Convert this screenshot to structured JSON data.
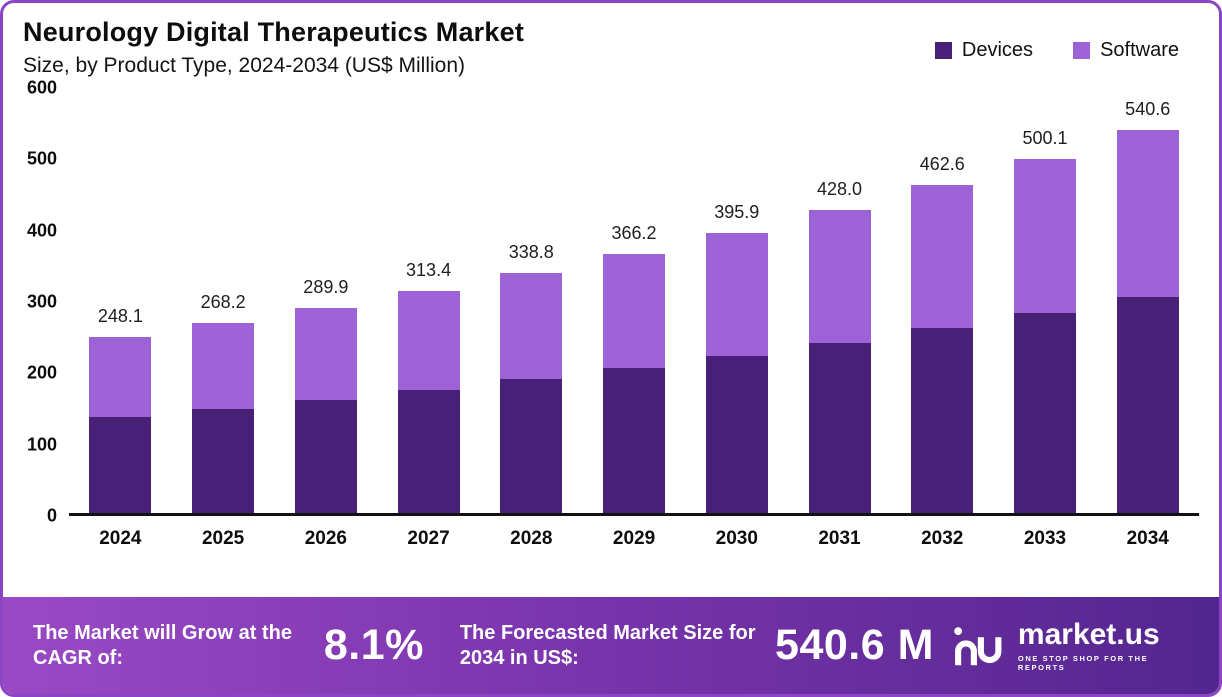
{
  "header": {
    "title": "Neurology Digital Therapeutics Market",
    "subtitle": "Size, by Product Type, 2024-2034 (US$ Million)"
  },
  "chart_data": {
    "type": "bar",
    "stacked": true,
    "title": "Neurology Digital Therapeutics Market Size, by Product Type, 2024-2034 (US$ Million)",
    "categories": [
      "2024",
      "2025",
      "2026",
      "2027",
      "2028",
      "2029",
      "2030",
      "2031",
      "2032",
      "2033",
      "2034"
    ],
    "series": [
      {
        "name": "Devices",
        "color": "#482078",
        "values": [
          135.0,
          147.0,
          160.0,
          174.0,
          189.0,
          205.0,
          222.0,
          240.0,
          261.0,
          282.0,
          305.0
        ]
      },
      {
        "name": "Software",
        "color": "#9d62d6",
        "values": [
          113.1,
          121.2,
          129.9,
          139.4,
          149.8,
          161.2,
          173.9,
          188.0,
          201.6,
          218.1,
          235.6
        ]
      }
    ],
    "totals": [
      248.1,
      268.2,
      289.9,
      313.4,
      338.8,
      366.2,
      395.9,
      428.0,
      462.6,
      500.1,
      540.6
    ],
    "xlabel": "",
    "ylabel": "",
    "ylim": [
      0,
      600
    ],
    "yticks": [
      0,
      100,
      200,
      300,
      400,
      500,
      600
    ],
    "grid": false,
    "legend_position": "top-right"
  },
  "footer": {
    "cagr_label": "The Market will Grow at the CAGR of:",
    "cagr_value": "8.1%",
    "forecast_label": "The Forecasted Market Size for 2034 in US$:",
    "forecast_value": "540.6 M",
    "brand_name": "market.us",
    "brand_tagline": "ONE STOP SHOP FOR THE REPORTS"
  },
  "colors": {
    "devices": "#482078",
    "software": "#9d62d6",
    "frame_border": "#8b44c4",
    "footer_gradient_start": "#9a49c5",
    "footer_gradient_end": "#53268f",
    "axis": "#121212"
  }
}
